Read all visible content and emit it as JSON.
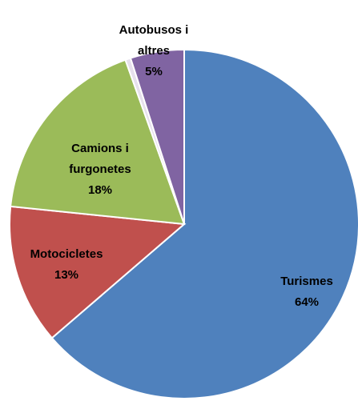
{
  "chart_data": {
    "type": "pie",
    "categories": [
      "Turismes",
      "Motocicletes",
      "Camions i furgonetes",
      null,
      "Autobusos i altres"
    ],
    "values": [
      64,
      13,
      18,
      0.5,
      5
    ],
    "value_labels": [
      "64%",
      "13%",
      "18%",
      null,
      "5%"
    ],
    "colors": [
      "#4f81bd",
      "#c0504d",
      "#9bbb59",
      "#e6e0ec",
      "#8064a2"
    ]
  }
}
